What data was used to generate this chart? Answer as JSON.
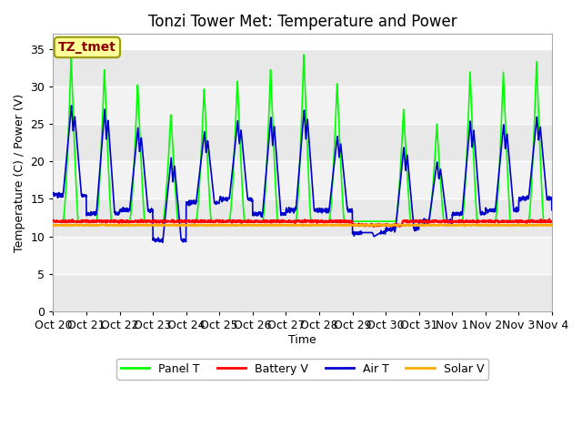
{
  "title": "Tonzi Tower Met: Temperature and Power",
  "xlabel": "Time",
  "ylabel": "Temperature (C) / Power (V)",
  "annotation": "TZ_tmet",
  "ylim": [
    0,
    37
  ],
  "yticks": [
    0,
    5,
    10,
    15,
    20,
    25,
    30,
    35
  ],
  "x_tick_labels": [
    "Oct 20",
    "Oct 21",
    "Oct 22",
    "Oct 23",
    "Oct 24",
    "Oct 25",
    "Oct 26",
    "Oct 27",
    "Oct 28",
    "Oct 29",
    "Oct 30",
    "Oct 31",
    "Nov 1",
    "Nov 2",
    "Nov 3",
    "Nov 4"
  ],
  "panel_color": "#00ff00",
  "battery_color": "#ff0000",
  "air_color": "#0000cc",
  "solar_color": "#ffaa00",
  "background_color": "#ffffff",
  "plot_bg_color": "#ffffff",
  "legend_labels": [
    "Panel T",
    "Battery V",
    "Air T",
    "Solar V"
  ],
  "title_fontsize": 12,
  "axis_fontsize": 9,
  "tick_fontsize": 9,
  "legend_fontsize": 9,
  "band_color": "#e8e8e8",
  "white_band": "#f8f8f8"
}
